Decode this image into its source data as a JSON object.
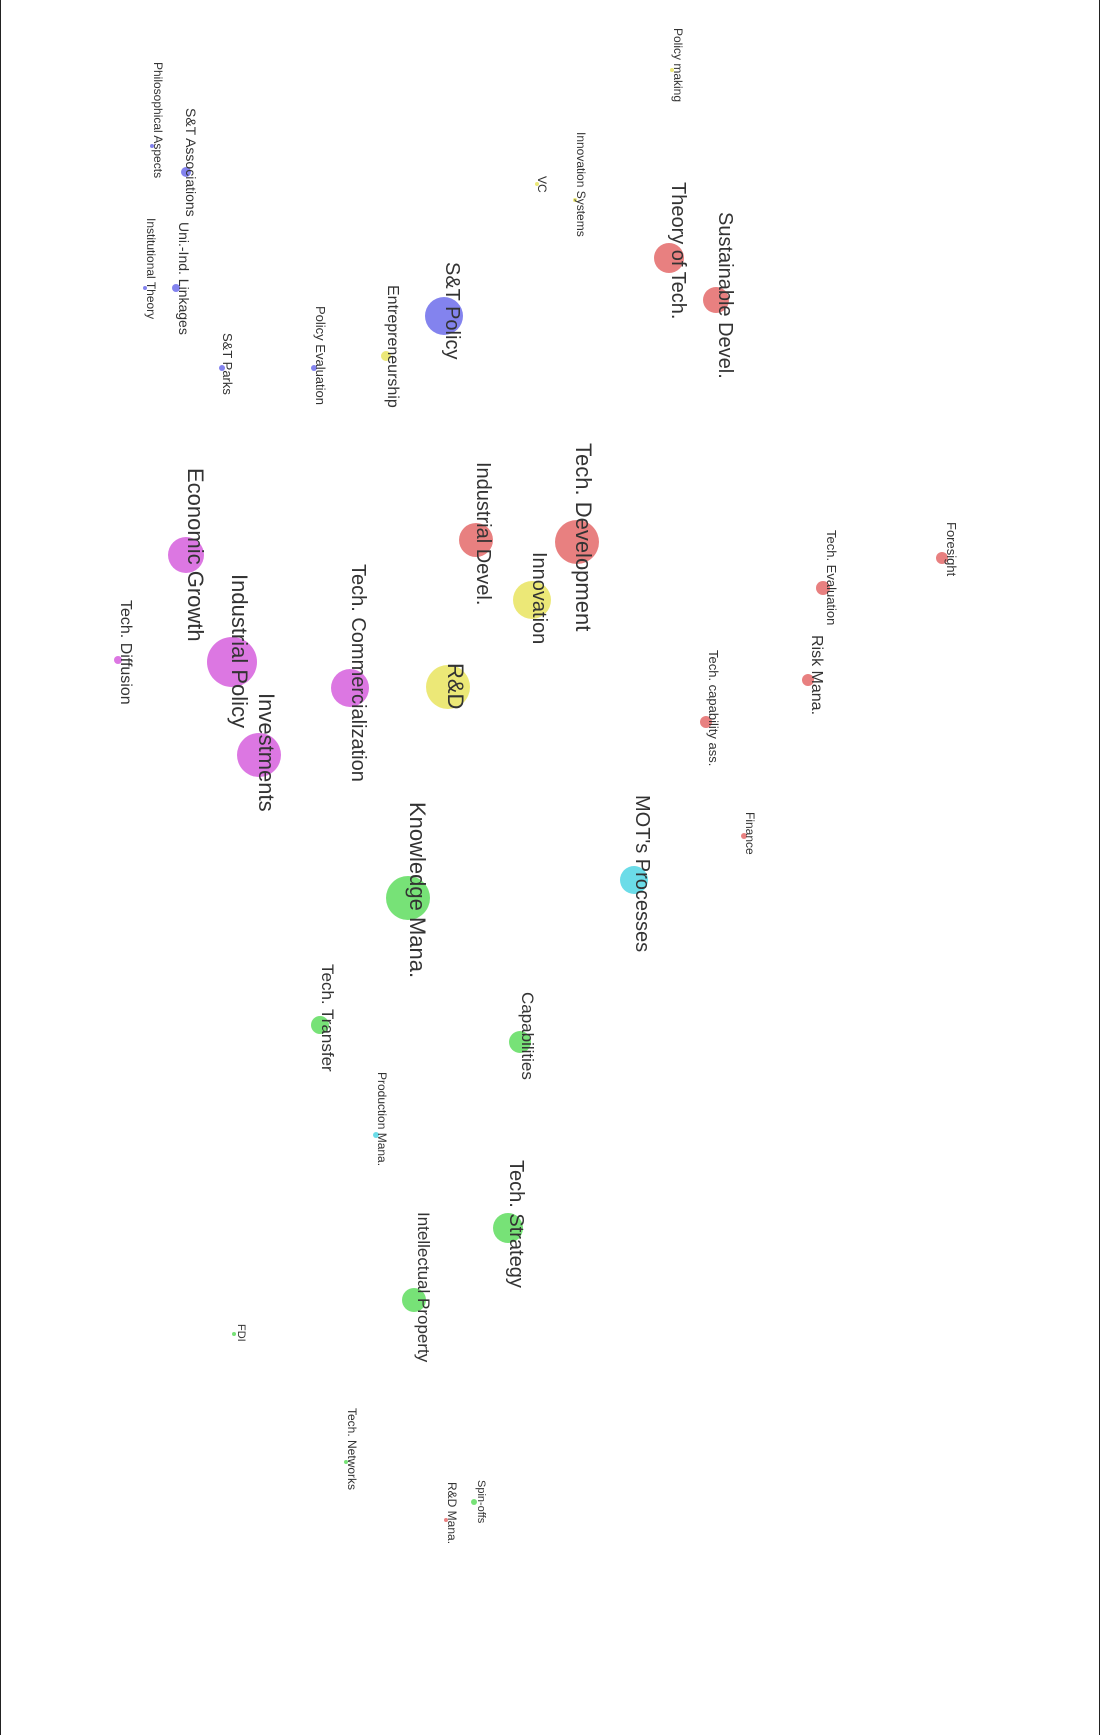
{
  "colors": {
    "red": "#e05555",
    "yellow": "#e6e04a",
    "magenta": "#d04ad8",
    "green": "#4ad84a",
    "blue": "#5a5ae8",
    "cyan": "#3ad0e0"
  },
  "nodes": [
    {
      "id": "foresight",
      "label": "Foresight",
      "color": "red",
      "weight": 1
    },
    {
      "id": "tech-evaluation",
      "label": "Tech. Evaluation",
      "color": "red",
      "weight": 1
    },
    {
      "id": "risk-mana",
      "label": "Risk Mana.",
      "color": "red",
      "weight": 1
    },
    {
      "id": "tech-capability-ass",
      "label": "Tech. capability ass.",
      "color": "red",
      "weight": 1
    },
    {
      "id": "finance",
      "label": "Finance",
      "color": "red",
      "weight": 1
    },
    {
      "id": "sustainable-devel",
      "label": "Sustainable Devel.",
      "color": "red",
      "weight": 2
    },
    {
      "id": "theory-of-tech",
      "label": "Theory of Tech.",
      "color": "red",
      "weight": 2
    },
    {
      "id": "policy-making",
      "label": "Policy making",
      "color": "yellow",
      "weight": 1
    },
    {
      "id": "innovation-systems",
      "label": "Innovation Systems",
      "color": "yellow",
      "weight": 1
    },
    {
      "id": "vc",
      "label": "VC",
      "color": "yellow",
      "weight": 1
    },
    {
      "id": "tech-development",
      "label": "Tech. Development",
      "color": "red",
      "weight": 3
    },
    {
      "id": "industrial-devel",
      "label": "Industrial Devel.",
      "color": "red",
      "weight": 2
    },
    {
      "id": "innovation",
      "label": "Innovation",
      "color": "yellow",
      "weight": 2
    },
    {
      "id": "r-and-d",
      "label": "R&D",
      "color": "yellow",
      "weight": 3
    },
    {
      "id": "mots-processes",
      "label": "MOT's Processes",
      "color": "cyan",
      "weight": 2
    },
    {
      "id": "st-policy",
      "label": "S&T Policy",
      "color": "blue",
      "weight": 2
    },
    {
      "id": "entrepreneurship",
      "label": "Entrepreneurship",
      "color": "yellow",
      "weight": 1
    },
    {
      "id": "policy-evaluation",
      "label": "Policy Evaluation",
      "color": "blue",
      "weight": 1
    },
    {
      "id": "st-parks",
      "label": "S&T Parks",
      "color": "blue",
      "weight": 1
    },
    {
      "id": "st-associations",
      "label": "S&T Associations",
      "color": "blue",
      "weight": 1
    },
    {
      "id": "uni-ind-linkages",
      "label": "Uni.-Ind. Linkages",
      "color": "blue",
      "weight": 1
    },
    {
      "id": "philosophical-aspects",
      "label": "Philosophical Aspects",
      "color": "blue",
      "weight": 1
    },
    {
      "id": "institutional-theory",
      "label": "Institutional Theory",
      "color": "blue",
      "weight": 1
    },
    {
      "id": "economic-growth",
      "label": "Economic Growth",
      "color": "magenta",
      "weight": 2
    },
    {
      "id": "industrial-policy",
      "label": "Industrial Policy",
      "color": "magenta",
      "weight": 3
    },
    {
      "id": "investments",
      "label": "Investments",
      "color": "magenta",
      "weight": 2
    },
    {
      "id": "tech-commercialization",
      "label": "Tech. Commercialization",
      "color": "magenta",
      "weight": 2
    },
    {
      "id": "tech-diffusion",
      "label": "Tech. Diffusion",
      "color": "magenta",
      "weight": 1
    },
    {
      "id": "knowledge-mana",
      "label": "Knowledge Mana.",
      "color": "green",
      "weight": 3
    },
    {
      "id": "tech-transfer",
      "label": "Tech. Transfer",
      "color": "green",
      "weight": 1
    },
    {
      "id": "capabilities",
      "label": "Capabilities",
      "color": "green",
      "weight": 1
    },
    {
      "id": "production-mana",
      "label": "Production Mana.",
      "color": "cyan",
      "weight": 1
    },
    {
      "id": "tech-strategy",
      "label": "Tech. Strategy",
      "color": "green",
      "weight": 2
    },
    {
      "id": "intellectual-property",
      "label": "Intellectual Property",
      "color": "green",
      "weight": 1
    },
    {
      "id": "fdi",
      "label": "FDI",
      "color": "green",
      "weight": 1
    },
    {
      "id": "tech-networks",
      "label": "Tech. Networks",
      "color": "green",
      "weight": 1
    },
    {
      "id": "spin-offs",
      "label": "Spin-offs",
      "color": "green",
      "weight": 1
    },
    {
      "id": "r-and-d-mana",
      "label": "R&D Mana.",
      "color": "red",
      "weight": 1
    }
  ]
}
